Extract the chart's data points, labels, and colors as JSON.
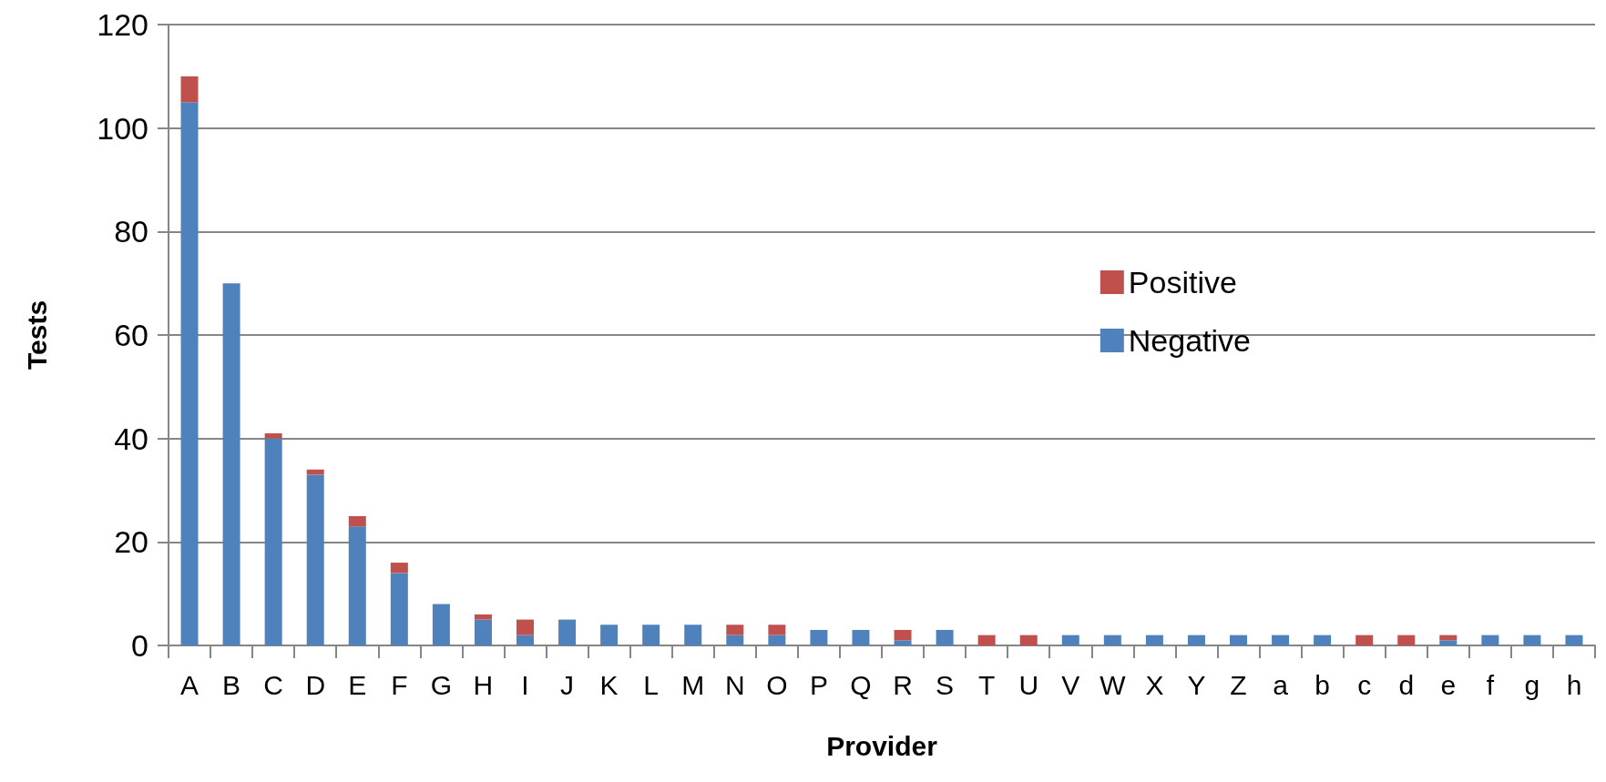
{
  "chart_data": {
    "type": "bar",
    "stacked": true,
    "xlabel": "Provider",
    "ylabel": "Tests",
    "categories": [
      "A",
      "B",
      "C",
      "D",
      "E",
      "F",
      "G",
      "H",
      "I",
      "J",
      "K",
      "L",
      "M",
      "N",
      "O",
      "P",
      "Q",
      "R",
      "S",
      "T",
      "U",
      "V",
      "W",
      "X",
      "Y",
      "Z",
      "a",
      "b",
      "c",
      "d",
      "e",
      "f",
      "g",
      "h"
    ],
    "series": [
      {
        "name": "Negative",
        "color": "#4f81bd",
        "values": [
          105,
          70,
          40,
          33,
          23,
          14,
          8,
          5,
          2,
          5,
          4,
          4,
          4,
          2,
          2,
          3,
          3,
          1,
          3,
          0,
          0,
          2,
          2,
          2,
          2,
          2,
          2,
          2,
          0,
          0,
          1,
          2,
          2,
          2
        ]
      },
      {
        "name": "Positive",
        "color": "#c0504d",
        "values": [
          5,
          0,
          1,
          1,
          2,
          2,
          0,
          1,
          3,
          0,
          0,
          0,
          0,
          2,
          2,
          0,
          0,
          2,
          0,
          2,
          2,
          0,
          0,
          0,
          0,
          0,
          0,
          0,
          2,
          2,
          1,
          0,
          0,
          0
        ]
      }
    ],
    "ylim": [
      0,
      120
    ],
    "yticks": [
      0,
      20,
      40,
      60,
      80,
      100,
      120
    ],
    "grid": "y",
    "legend": "right"
  }
}
